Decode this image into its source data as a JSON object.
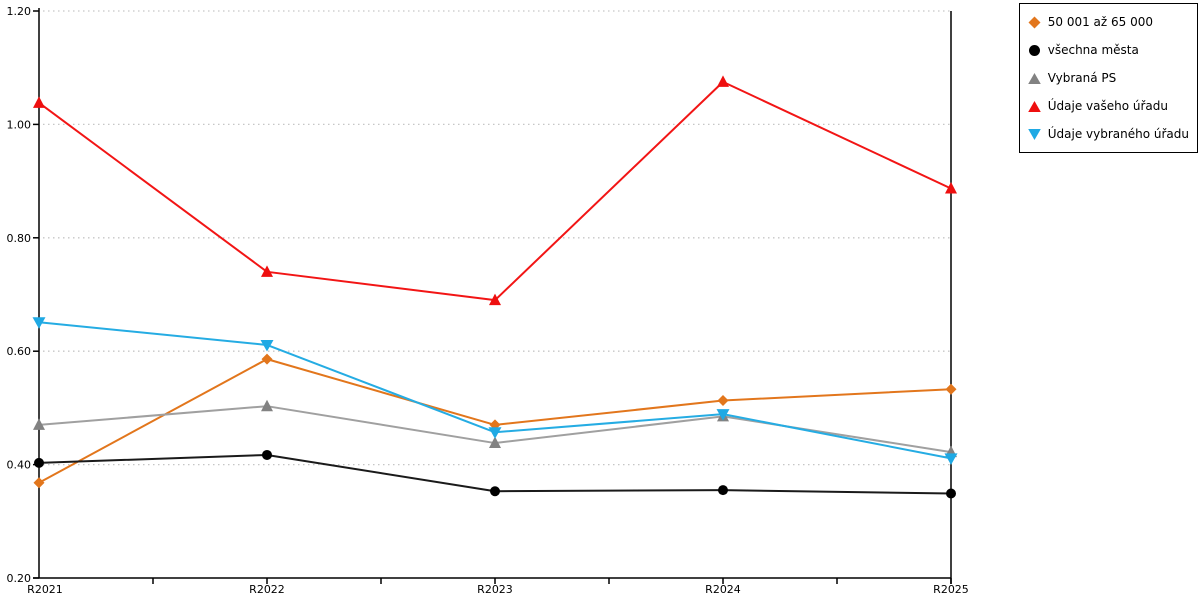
{
  "chart_data": {
    "type": "line",
    "title": "",
    "xlabel": "",
    "ylabel": "",
    "categories": [
      "R2021",
      "R2022",
      "R2023",
      "R2024",
      "R2025"
    ],
    "y_tick_labels": [
      "0.20",
      "0.40",
      "0.60",
      "0.80",
      "1.00",
      "1.20"
    ],
    "ylim": [
      0.2,
      1.2
    ],
    "y_step": 0.2,
    "grid": "horizontal-dotted",
    "legend_position": "top-right",
    "axis_color": "#000000",
    "grid_color": "#c6c6c6",
    "series": [
      {
        "name": "50 001 až 65 000",
        "color": "#e2761c",
        "line_color": "#e2761c",
        "marker": "diamond",
        "values": [
          0.368,
          0.586,
          0.47,
          0.513,
          0.533
        ]
      },
      {
        "name": "všechna města",
        "color": "#000000",
        "line_color": "#1a1a1a",
        "marker": "circle",
        "values": [
          0.403,
          0.417,
          0.353,
          0.355,
          0.349
        ]
      },
      {
        "name": "Vybraná PS",
        "color": "#828282",
        "line_color": "#a0a0a0",
        "marker": "triangle-up",
        "values": [
          0.47,
          0.503,
          0.438,
          0.485,
          0.422
        ]
      },
      {
        "name": "Údaje vašeho úřadu",
        "color": "#ee0f0f",
        "line_color": "#f21515",
        "marker": "triangle-up",
        "values": [
          1.038,
          0.74,
          0.69,
          1.075,
          0.887
        ]
      },
      {
        "name": "Údaje vybraného úřadu",
        "color": "#1fa9e4",
        "line_color": "#25ace3",
        "marker": "triangle-down",
        "values": [
          0.651,
          0.611,
          0.457,
          0.489,
          0.411
        ]
      }
    ]
  }
}
